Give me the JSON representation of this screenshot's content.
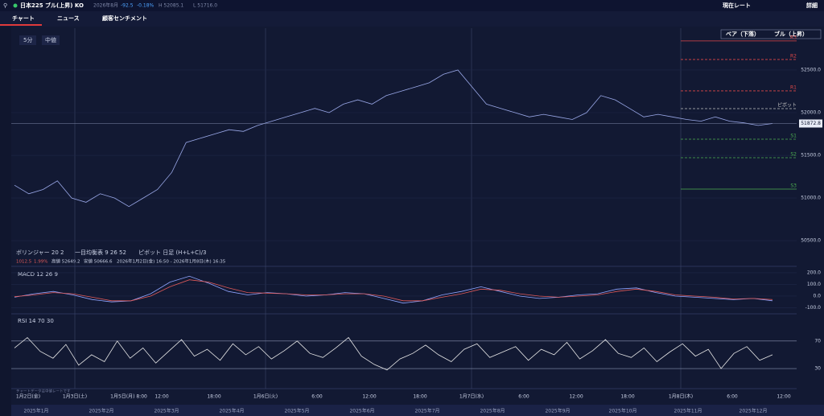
{
  "header": {
    "symbol": "日本225 ブル(上昇) KO",
    "expiry": "2026年8月",
    "change": "-92.5",
    "change_pct": "-0.18%",
    "high": "H 52085.1",
    "low": "L 51716.0",
    "rate_button": "現在レート",
    "detail_button": "詳細"
  },
  "tabs": [
    "チャート",
    "ニュース",
    "顧客センチメント"
  ],
  "toolbar": {
    "interval": "5分",
    "price_type": "中値",
    "bear": "ベア（下落）",
    "bull": "ブル（上昇）"
  },
  "indicators": [
    "ボリンジャー 20 2",
    "一目均衡表 9 26 52",
    "ピボット 日足 (H+L+C)/3"
  ],
  "summary": {
    "change": "1012.5",
    "change_pct": "1.99%",
    "high": "高値 52649.2",
    "low": "安値 50666.6",
    "range": "2026年1月2日(金) 16:50 - 2026年1月8日(木) 16:35"
  },
  "price_chart": {
    "type": "line",
    "color": "#9aa8e8",
    "ylim": [
      50350,
      52990
    ],
    "yticks": [
      {
        "value": 52500,
        "label": "52500.0"
      },
      {
        "value": 52000,
        "label": "52000.0"
      },
      {
        "value": 51500,
        "label": "51500.0"
      },
      {
        "value": 51000,
        "label": "51000.0"
      },
      {
        "value": 50500,
        "label": "50500.0"
      }
    ],
    "values": [
      51150,
      51050,
      51100,
      51200,
      51000,
      50950,
      51050,
      51000,
      50900,
      51000,
      51100,
      51300,
      51650,
      51700,
      51750,
      51800,
      51780,
      51850,
      51900,
      51950,
      52000,
      52050,
      52000,
      52100,
      52150,
      52100,
      52200,
      52250,
      52300,
      52350,
      52450,
      52500,
      52300,
      52100,
      52050,
      52000,
      51950,
      51980,
      51950,
      51920,
      52000,
      52200,
      52150,
      52050,
      51950,
      51980,
      51950,
      51920,
      51900,
      51950,
      51900,
      51880,
      51850,
      51872.8
    ],
    "last_price": 51872.8,
    "pivots": [
      {
        "name": "R3",
        "value": 52840,
        "color": "#e04848"
      },
      {
        "name": "R2",
        "value": 52623,
        "color": "#e04848"
      },
      {
        "name": "R1",
        "value": 52255,
        "color": "#e04848"
      },
      {
        "name": "ピボット",
        "value": 52047,
        "color": "#c0c0c0"
      },
      {
        "name": "S1",
        "value": 51689,
        "color": "#4caf50"
      },
      {
        "name": "S2",
        "value": 51472,
        "color": "#4caf50"
      },
      {
        "name": "S3",
        "value": 51104,
        "color": "#4caf50"
      }
    ]
  },
  "macd": {
    "type": "line",
    "label": "MACD 12 26 9",
    "ylim": [
      -145,
      241
    ],
    "yticks": [
      {
        "value": 200,
        "label": "200.0"
      },
      {
        "value": 100,
        "label": "100.0"
      },
      {
        "value": 0,
        "label": "0.0"
      },
      {
        "value": -100,
        "label": "-100.0"
      }
    ],
    "series": [
      {
        "name": "MACD",
        "color": "#8fa4ff",
        "values": [
          -10,
          20,
          40,
          10,
          -30,
          -50,
          -40,
          20,
          120,
          170,
          110,
          40,
          10,
          30,
          20,
          0,
          10,
          30,
          20,
          -20,
          -60,
          -40,
          10,
          40,
          80,
          40,
          0,
          -20,
          -10,
          10,
          20,
          60,
          70,
          30,
          0,
          -10,
          -20,
          -30,
          -20,
          -40
        ]
      },
      {
        "name": "Signal",
        "color": "#e05a5a",
        "values": [
          -5,
          10,
          30,
          20,
          -10,
          -40,
          -40,
          0,
          80,
          140,
          120,
          70,
          30,
          25,
          20,
          10,
          10,
          20,
          20,
          0,
          -40,
          -40,
          -10,
          20,
          60,
          50,
          20,
          0,
          -10,
          0,
          10,
          40,
          60,
          40,
          10,
          0,
          -10,
          -25,
          -20,
          -30
        ]
      }
    ]
  },
  "rsi": {
    "type": "line",
    "label": "RSI 14 70 30",
    "color": "#e8e8e8",
    "ylim": [
      2,
      106
    ],
    "yticks": [
      70,
      30
    ],
    "values": [
      60,
      75,
      55,
      45,
      65,
      35,
      50,
      40,
      70,
      45,
      60,
      38,
      55,
      72,
      48,
      58,
      42,
      66,
      50,
      62,
      44,
      56,
      70,
      52,
      46,
      60,
      75,
      48,
      36,
      28,
      44,
      52,
      64,
      50,
      40,
      58,
      66,
      46,
      54,
      62,
      42,
      58,
      50,
      68,
      44,
      56,
      72,
      52,
      46,
      60,
      40,
      54,
      66,
      48,
      58,
      30,
      52,
      62,
      42,
      50
    ]
  },
  "footnote": "チャートデータは中値レートです",
  "time_axis": [
    "1月2日(金)",
    "1月3日(土)",
    "1月5日(月) 8:00",
    "12:00",
    "18:00",
    "1月6日(火)",
    "6:00",
    "12:00",
    "18:00",
    "1月7日(水)",
    "6:00",
    "12:00",
    "18:00",
    "1月8日(木)",
    "6:00",
    "12:00"
  ],
  "navigator": [
    "2025年1月",
    "2025年2月",
    "2025年3月",
    "2025年4月",
    "2025年5月",
    "2025年6月",
    "2025年7月",
    "2025年8月",
    "2025年9月",
    "2025年10月",
    "2025年11月",
    "2025年12月"
  ]
}
